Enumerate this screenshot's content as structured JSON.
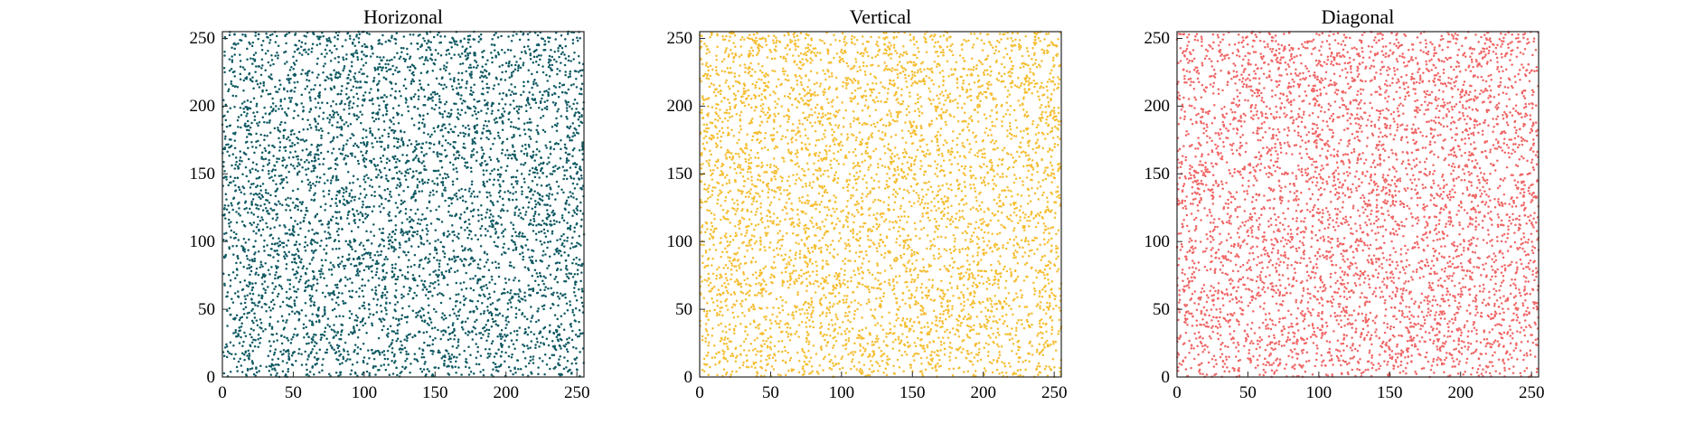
{
  "chart_data": [
    {
      "type": "scatter",
      "title": "Horizonal",
      "xlabel": "",
      "ylabel": "",
      "xlim": [
        0,
        255
      ],
      "ylim": [
        0,
        255
      ],
      "xticks": [
        "0",
        "50",
        "100",
        "150",
        "200",
        "250"
      ],
      "yticks": [
        "0",
        "50",
        "100",
        "150",
        "200",
        "250"
      ],
      "grid": false,
      "color": "#0f5a63",
      "points": 5000
    },
    {
      "type": "scatter",
      "title": "Vertical",
      "xlabel": "",
      "ylabel": "",
      "xlim": [
        0,
        255
      ],
      "ylim": [
        0,
        255
      ],
      "xticks": [
        "0",
        "50",
        "100",
        "150",
        "200",
        "250"
      ],
      "yticks": [
        "0",
        "50",
        "100",
        "150",
        "200",
        "250"
      ],
      "grid": false,
      "color": "#f5be32",
      "points": 5000
    },
    {
      "type": "scatter",
      "title": "Diagonal",
      "xlabel": "",
      "ylabel": "",
      "xlim": [
        0,
        255
      ],
      "ylim": [
        0,
        255
      ],
      "xticks": [
        "0",
        "50",
        "100",
        "150",
        "200",
        "250"
      ],
      "yticks": [
        "0",
        "50",
        "100",
        "150",
        "200",
        "250"
      ],
      "grid": false,
      "color": "#f06666",
      "points": 5000
    }
  ]
}
